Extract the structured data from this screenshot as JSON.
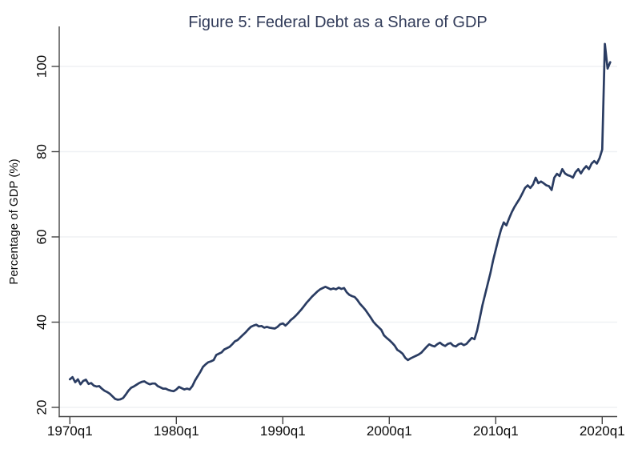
{
  "chart": {
    "title": "Figure 5: Federal Debt as a Share of GDP",
    "ylabel": "Percentage of GDP (%)"
  },
  "chart_data": {
    "type": "line",
    "title": "Figure 5: Federal Debt as a Share of GDP",
    "xlabel": "",
    "ylabel": "Percentage of GDP (%)",
    "x_start": 1970.0,
    "x_step": 0.25,
    "x_unit": "quarter",
    "x_end": 2020.75,
    "xlim": [
      1969.0,
      2021.5
    ],
    "ylim": [
      17.8,
      109.4
    ],
    "grid": "horizontal",
    "legend": "none",
    "line_color": "#2a3c62",
    "title_color": "#323c5a",
    "axis_color": "#454545",
    "grid_color": "#eff1f4",
    "tick_label_color": "#0a0a0a",
    "background_color": "#ffffff",
    "y_ticks": [
      {
        "value": 20,
        "label": "20"
      },
      {
        "value": 40,
        "label": "40"
      },
      {
        "value": 60,
        "label": "60"
      },
      {
        "value": 80,
        "label": "80"
      },
      {
        "value": 100,
        "label": "100"
      }
    ],
    "x_ticks": [
      {
        "value": 1970,
        "label": "1970q1"
      },
      {
        "value": 1980,
        "label": "1980q1"
      },
      {
        "value": 1990,
        "label": "1990q1"
      },
      {
        "value": 2000,
        "label": "2000q1"
      },
      {
        "value": 2010,
        "label": "2010q1"
      },
      {
        "value": 2020,
        "label": "2020q1"
      }
    ],
    "series": [
      {
        "name": "Federal debt as a share of GDP",
        "values": [
          26.6,
          27.1,
          25.9,
          26.6,
          25.4,
          26.2,
          26.5,
          25.5,
          25.7,
          25.1,
          24.9,
          25.0,
          24.4,
          23.9,
          23.6,
          23.2,
          22.6,
          22.0,
          21.8,
          21.9,
          22.2,
          23.0,
          23.9,
          24.6,
          24.9,
          25.3,
          25.7,
          26.0,
          26.1,
          25.7,
          25.4,
          25.6,
          25.6,
          25.0,
          24.7,
          24.4,
          24.4,
          24.1,
          23.9,
          23.8,
          24.2,
          24.8,
          24.5,
          24.2,
          24.4,
          24.2,
          25.0,
          26.3,
          27.3,
          28.3,
          29.5,
          30.1,
          30.6,
          30.8,
          31.1,
          32.3,
          32.6,
          32.9,
          33.6,
          33.9,
          34.2,
          34.8,
          35.5,
          35.8,
          36.4,
          37.0,
          37.6,
          38.3,
          38.9,
          39.2,
          39.4,
          39.0,
          39.1,
          38.7,
          38.9,
          38.7,
          38.6,
          38.5,
          38.9,
          39.5,
          39.7,
          39.2,
          39.8,
          40.5,
          41.0,
          41.6,
          42.3,
          43.0,
          43.8,
          44.6,
          45.3,
          46.0,
          46.6,
          47.2,
          47.7,
          48.0,
          48.3,
          48.0,
          47.7,
          47.9,
          47.7,
          48.1,
          47.8,
          48.0,
          47.0,
          46.4,
          46.1,
          45.9,
          45.2,
          44.3,
          43.6,
          42.9,
          42.0,
          41.1,
          40.1,
          39.4,
          38.8,
          38.2,
          36.9,
          36.3,
          35.8,
          35.2,
          34.5,
          33.5,
          33.1,
          32.6,
          31.6,
          31.1,
          31.5,
          31.8,
          32.1,
          32.4,
          32.8,
          33.5,
          34.2,
          34.8,
          34.5,
          34.3,
          34.8,
          35.2,
          34.7,
          34.4,
          34.9,
          35.1,
          34.5,
          34.3,
          34.8,
          35.0,
          34.6,
          34.9,
          35.6,
          36.3,
          36.0,
          38.0,
          41.0,
          44.0,
          46.5,
          49.0,
          51.5,
          54.5,
          57.0,
          59.5,
          61.7,
          63.4,
          62.7,
          64.3,
          65.8,
          67.0,
          68.0,
          69.0,
          70.2,
          71.5,
          72.1,
          71.5,
          72.3,
          73.9,
          72.6,
          73.0,
          72.6,
          72.1,
          71.9,
          71.0,
          73.9,
          74.8,
          74.3,
          75.9,
          74.9,
          74.5,
          74.3,
          73.9,
          75.2,
          75.9,
          74.9,
          75.9,
          76.6,
          75.9,
          77.2,
          77.8,
          77.2,
          78.5,
          80.5,
          105.3,
          99.5,
          101.0
        ]
      }
    ]
  }
}
